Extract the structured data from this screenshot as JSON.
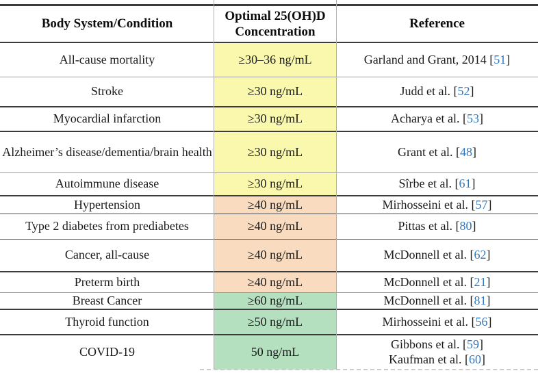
{
  "table": {
    "header": {
      "columns": [
        "Body System/Condition",
        "Optimal 25(OH)D Concentration",
        "Reference"
      ]
    },
    "rows": [
      {
        "condition": "All-cause mortality",
        "value": "≥30–36 ng/mL",
        "group": "yellow",
        "refs": [
          {
            "text": "Garland and Grant, 2014",
            "num": "51"
          }
        ]
      },
      {
        "condition": "Stroke",
        "value": "≥30 ng/mL",
        "group": "yellow",
        "refs": [
          {
            "text": "Judd et al.",
            "num": "52"
          }
        ]
      },
      {
        "condition": "Myocardial infarction",
        "value": "≥30 ng/mL",
        "group": "yellow",
        "refs": [
          {
            "text": "Acharya et al.",
            "num": "53"
          }
        ]
      },
      {
        "condition": "Alzheimer’s disease/dementia/brain health",
        "value": "≥30 ng/mL",
        "group": "yellow",
        "refs": [
          {
            "text": "Grant et al.",
            "num": "48"
          }
        ]
      },
      {
        "condition": "Autoimmune disease",
        "value": "≥30 ng/mL",
        "group": "yellow",
        "refs": [
          {
            "text": "Sîrbe et al.",
            "num": "61"
          }
        ]
      },
      {
        "condition": "Hypertension",
        "value": "≥40 ng/mL",
        "group": "orange",
        "refs": [
          {
            "text": "Mirhosseini et al.",
            "num": "57"
          }
        ]
      },
      {
        "condition": "Type 2 diabetes from prediabetes",
        "value": "≥40 ng/mL",
        "group": "orange",
        "refs": [
          {
            "text": "Pittas et al.",
            "num": "80"
          }
        ]
      },
      {
        "condition": "Cancer, all-cause",
        "value": "≥40 ng/mL",
        "group": "orange",
        "refs": [
          {
            "text": "McDonnell et al.",
            "num": "62"
          }
        ]
      },
      {
        "condition": "Preterm birth",
        "value": "≥40 ng/mL",
        "group": "orange",
        "refs": [
          {
            "text": "McDonnell et al.",
            "num": "21"
          }
        ]
      },
      {
        "condition": "Breast Cancer",
        "value": "≥60 ng/mL",
        "group": "green",
        "refs": [
          {
            "text": "McDonnell et al.",
            "num": "81"
          }
        ]
      },
      {
        "condition": "Thyroid function",
        "value": "≥50 ng/mL",
        "group": "green",
        "refs": [
          {
            "text": "Mirhosseini et al.",
            "num": "56"
          }
        ]
      },
      {
        "condition": "COVID-19",
        "value": "50 ng/mL",
        "group": "green",
        "refs": [
          {
            "text": "Gibbons et al.",
            "num": "59"
          },
          {
            "text": "Kaufman et al.",
            "num": "60"
          }
        ]
      }
    ],
    "colors": {
      "highlight_yellow": "#faf8ad",
      "highlight_orange": "#f9dcbf",
      "highlight_green": "#b4e0c0",
      "citation_blue": "#3377bd",
      "rule_dark": "#3b3b3b",
      "rule_light": "#9c9c9c"
    }
  }
}
